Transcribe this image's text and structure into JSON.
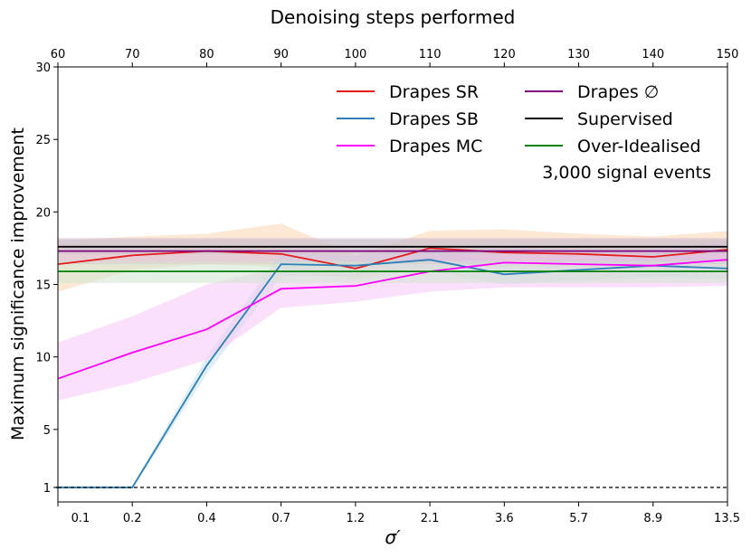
{
  "chart_data": {
    "type": "line",
    "title": "",
    "top_axis_label": "Denoising steps performed",
    "top_ticks": [
      "60",
      "70",
      "80",
      "90",
      "100",
      "110",
      "120",
      "130",
      "140",
      "150"
    ],
    "xlabel": "σ′",
    "xticks": [
      "0.1",
      "0.2",
      "0.4",
      "0.7",
      "1.2",
      "2.1",
      "3.6",
      "5.7",
      "8.9",
      "13.5"
    ],
    "ylabel": "Maximum significance improvement",
    "yticks": [
      1,
      5,
      10,
      15,
      20,
      25,
      30
    ],
    "ylim": [
      0,
      30
    ],
    "x_index_range": [
      0,
      9
    ],
    "reference_line": {
      "y": 1,
      "style": "dashed",
      "color": "#000000"
    },
    "annotation": "3,000 signal events",
    "series": [
      {
        "name": "Drapes SR",
        "color": "#e41a1c",
        "x": [
          0,
          1,
          2,
          3,
          4,
          5,
          6,
          7,
          8,
          9
        ],
        "values": [
          16.4,
          17.0,
          17.3,
          17.1,
          16.1,
          17.5,
          17.2,
          17.1,
          16.9,
          17.4
        ],
        "band_low": [
          14.5,
          16.0,
          16.4,
          16.2,
          15.3,
          16.3,
          16.2,
          16.2,
          16.0,
          16.2
        ],
        "band_high": [
          18.0,
          18.3,
          18.5,
          19.2,
          17.0,
          18.7,
          18.8,
          18.5,
          18.3,
          18.7
        ],
        "band_color": "#fbd5b5"
      },
      {
        "name": "Drapes SB",
        "color": "#2c7fb8",
        "x": [
          -0.03,
          1.0,
          2.0,
          3.0,
          4.0,
          5.0,
          6.0,
          7.0,
          8.0,
          9.0
        ],
        "values": [
          1.0,
          1.0,
          9.4,
          16.4,
          16.3,
          16.7,
          15.7,
          16.0,
          16.3,
          16.1
        ],
        "band_low": [
          0.9,
          0.9,
          8.8,
          15.6,
          15.6,
          15.9,
          15.0,
          15.3,
          15.5,
          15.4
        ],
        "band_high": [
          1.1,
          1.1,
          10.0,
          17.2,
          17.0,
          17.5,
          16.4,
          16.7,
          17.1,
          16.8
        ],
        "band_color": "#c6e2f0"
      },
      {
        "name": "Drapes MC",
        "color": "#ff00ff",
        "x": [
          0,
          1,
          2,
          3,
          4,
          5,
          6,
          7,
          8,
          9
        ],
        "values": [
          8.5,
          10.3,
          11.9,
          14.7,
          14.9,
          15.9,
          16.5,
          16.4,
          16.3,
          16.7
        ],
        "band_low": [
          7.0,
          8.2,
          9.8,
          13.4,
          13.8,
          14.5,
          14.8,
          14.8,
          14.8,
          14.9
        ],
        "band_high": [
          11.0,
          12.8,
          15.0,
          16.2,
          16.1,
          17.0,
          17.6,
          17.4,
          17.4,
          17.9
        ],
        "band_color": "#f6c7f6"
      },
      {
        "name": "Drapes ∅",
        "color": "#800080",
        "x": [
          0,
          9
        ],
        "values": [
          17.3,
          17.3
        ],
        "band_low": [
          16.4,
          16.4
        ],
        "band_high": [
          18.2,
          18.2
        ],
        "band_color": "#d6b7d6"
      },
      {
        "name": "Supervised",
        "color": "#000000",
        "x": [
          0,
          9
        ],
        "values": [
          17.6,
          17.6
        ],
        "band_low": [
          17.1,
          17.1
        ],
        "band_high": [
          18.1,
          18.1
        ],
        "band_color": "#c8c8c8"
      },
      {
        "name": "Over-Idealised",
        "color": "#008000",
        "x": [
          0,
          9
        ],
        "values": [
          15.9,
          15.9
        ],
        "band_low": [
          15.1,
          15.1
        ],
        "band_high": [
          16.6,
          16.6
        ],
        "band_color": "#cfe6cf"
      }
    ],
    "legend_position": "upper-right",
    "grid": false
  }
}
